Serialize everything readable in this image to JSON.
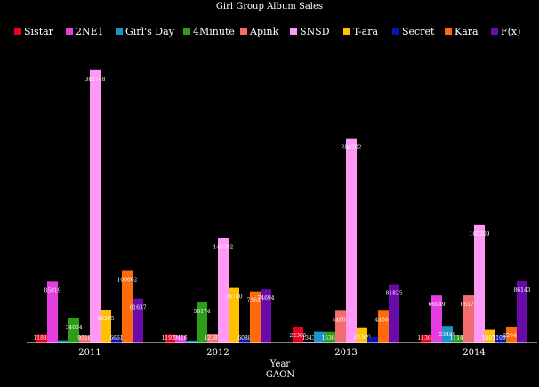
{
  "chart_data": {
    "type": "bar",
    "title": "Girl Group Album Sales",
    "xlabel": "Year",
    "subtitle": "GAON",
    "ylabel": "",
    "categories": [
      "2011",
      "2012",
      "2013",
      "2014"
    ],
    "ylim": [
      0,
      400000
    ],
    "grid": false,
    "legend_position": "top",
    "series": [
      {
        "name": "Sistar",
        "color": "#e8001c",
        "values": [
          11881,
          11920,
          22365,
          11369
        ]
      },
      {
        "name": "2NE1",
        "color": "#e53de0",
        "values": [
          85819,
          9416,
          1343,
          66049
        ]
      },
      {
        "name": "Girl's Day",
        "color": "#1c92c6",
        "values": [
          3000,
          2700,
          15500,
          23488
        ]
      },
      {
        "name": "4Minute",
        "color": "#2e9e1a",
        "values": [
          34004,
          56174,
          15362,
          11147
        ]
      },
      {
        "name": "Apink",
        "color": "#f26d6d",
        "values": [
          9318,
          12380,
          44602,
          66177
        ]
      },
      {
        "name": "SNSD",
        "color": "#ff99f5",
        "values": [
          382748,
          146702,
          286702,
          165209
        ]
      },
      {
        "name": "T-ara",
        "color": "#ffc000",
        "values": [
          46205,
          76740,
          20380,
          18077
        ]
      },
      {
        "name": "Secret",
        "color": "#0a14b4",
        "values": [
          6661,
          6088,
          7600,
          11093
        ]
      },
      {
        "name": "Kara",
        "color": "#ff6a0a",
        "values": [
          100662,
          71642,
          44683,
          22646
        ]
      },
      {
        "name": "F(x)",
        "color": "#6a0aab",
        "values": [
          61637,
          74694,
          81825,
          86143
        ]
      }
    ],
    "data_labels": [
      [
        "11881",
        "85819",
        "",
        "34004",
        "9318",
        "382748",
        "46205",
        "6661",
        "100662",
        "61637"
      ],
      [
        "11920",
        "9416",
        "",
        "56174",
        "12380",
        "146702",
        "76740",
        "6088",
        "71642",
        "74694"
      ],
      [
        "22365",
        "1343",
        "",
        "15362",
        "44602",
        "286702",
        "20380",
        "",
        "44683",
        "81825"
      ],
      [
        "11369",
        "66049",
        "23488",
        "11147",
        "66177",
        "165209",
        "18077",
        "11093",
        "22646",
        "86143"
      ]
    ]
  }
}
